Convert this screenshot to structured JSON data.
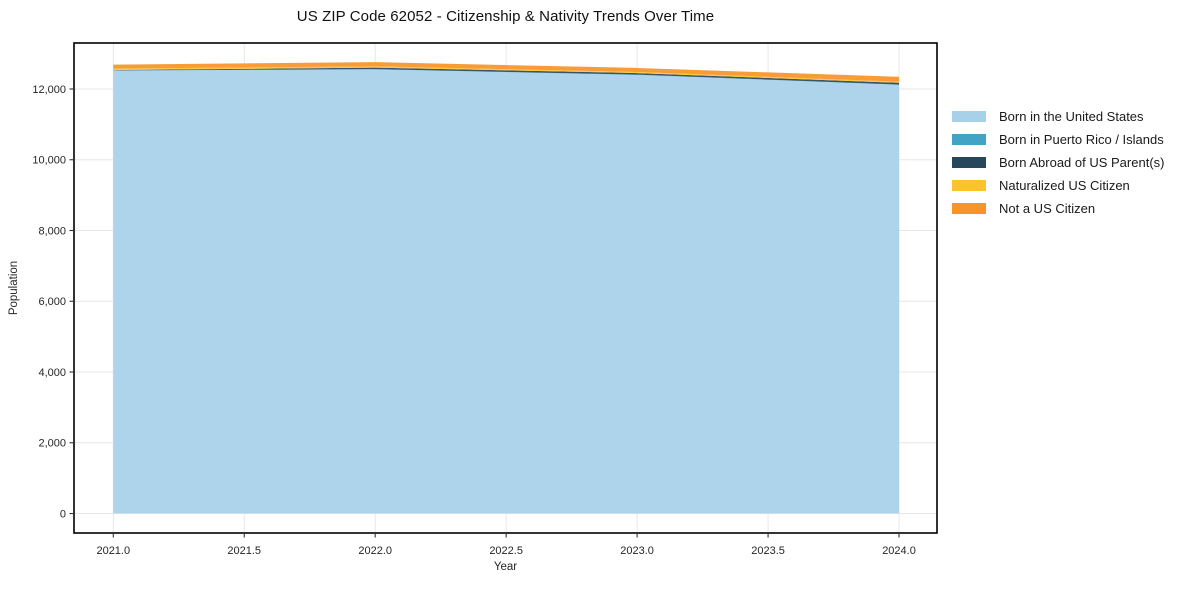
{
  "chart_data": {
    "type": "area",
    "stacked": true,
    "title": "US ZIP Code 62052 - Citizenship & Nativity Trends Over Time",
    "xlabel": "Year",
    "ylabel": "Population",
    "x": [
      2021,
      2022,
      2023,
      2024
    ],
    "series": [
      {
        "name": "Born in the United States",
        "color": "#a7d1e8",
        "values": [
          12520,
          12555,
          12400,
          12120
        ]
      },
      {
        "name": "Born in Puerto Rico / Islands",
        "color": "#41a4c4",
        "values": [
          5,
          5,
          5,
          5
        ]
      },
      {
        "name": "Born Abroad of US Parent(s)",
        "color": "#27485c",
        "values": [
          10,
          45,
          45,
          50
        ]
      },
      {
        "name": "Naturalized US Citizen",
        "color": "#fcc32e",
        "values": [
          40,
          35,
          30,
          30
        ]
      },
      {
        "name": "Not a US Citizen",
        "color": "#f79429",
        "values": [
          115,
          120,
          115,
          140
        ]
      }
    ],
    "x_ticks": [
      2021.0,
      2021.5,
      2022.0,
      2022.5,
      2023.0,
      2023.5,
      2024.0
    ],
    "x_tick_labels": [
      "2021.0",
      "2021.5",
      "2022.0",
      "2022.5",
      "2023.0",
      "2023.5",
      "2024.0"
    ],
    "y_ticks": [
      0,
      2000,
      4000,
      6000,
      8000,
      10000,
      12000
    ],
    "y_tick_labels": [
      "0",
      "2,000",
      "4,000",
      "6,000",
      "8,000",
      "10,000",
      "12,000"
    ],
    "xlim": [
      2020.85,
      2024.145
    ],
    "ylim": [
      -550,
      13300
    ],
    "grid": true,
    "legend_position": "right",
    "colors": {
      "grid": "#e7e7e7",
      "frame": "#000000",
      "tick_label": "#262626"
    }
  }
}
